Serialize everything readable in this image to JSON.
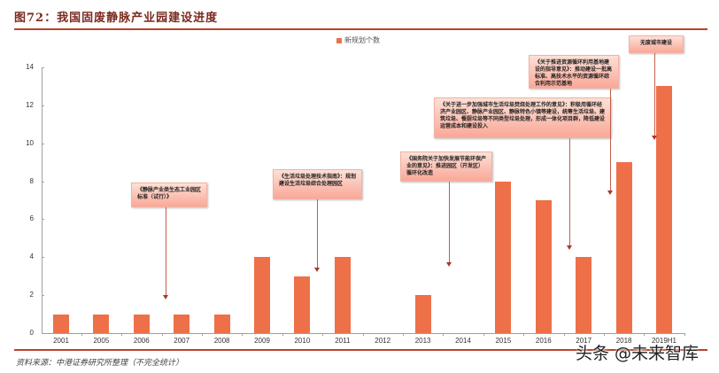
{
  "title": "图72：我国固废静脉产业园建设进度",
  "legend": {
    "label": "新规划个数",
    "color": "#ee7049"
  },
  "source": "资料来源：中港证券研究所整理（不完全统计）",
  "watermark": "头条 @未来智库",
  "y_ticks": [
    "0",
    "2",
    "4",
    "6",
    "8",
    "10",
    "12",
    "14"
  ],
  "callouts": [
    {
      "text": "《静脉产业类生态工业园区标准（试行）》"
    },
    {
      "text": "《生活垃圾处理技术指南》：规划建设生活垃圾综合处理园区"
    },
    {
      "text": "《国务院关于加快发展节能环保产业的意见》：推进园区（开发区）循环化改造"
    },
    {
      "text": "《关于进一步加强城市生活垃圾焚烧处理工作的意见》：积极用循环经济产业园区、静脉产业园区、静脉特色小镇等建设，统筹生活垃圾、建筑垃圾、餐厨垃圾等不同类型垃圾处理，形成一体化项目群，降低建设运营成本和建设投入"
    },
    {
      "text": "《关于推进资源循环利用基地建设的指导意见》：推动建设一批高标准、高技术水平的资源循环综合利用示范基地"
    },
    {
      "text": "无废城市建设"
    }
  ],
  "chart_data": {
    "type": "bar",
    "title": "图72：我国固废静脉产业园建设进度",
    "xlabel": "",
    "ylabel": "",
    "ylim": [
      0,
      14
    ],
    "yticks": [
      0,
      2,
      4,
      6,
      8,
      10,
      12,
      14
    ],
    "grid": false,
    "legend_position": "top",
    "categories": [
      "2001",
      "2005",
      "2006",
      "2007",
      "2008",
      "2009",
      "2010",
      "2011",
      "2012",
      "2013",
      "2014",
      "2015",
      "2016",
      "2017",
      "2018",
      "2019H1"
    ],
    "series": [
      {
        "name": "新规划个数",
        "color": "#ee7049",
        "values": [
          1,
          1,
          1,
          1,
          1,
          4,
          3,
          4,
          0,
          2,
          0,
          8,
          7,
          4,
          9,
          13
        ]
      }
    ],
    "annotations": [
      {
        "category": "2007",
        "text": "《静脉产业类生态工业园区标准（试行）》"
      },
      {
        "category": "2010",
        "text": "《生活垃圾处理技术指南》：规划建设生活垃圾综合处理园区"
      },
      {
        "category": "2014",
        "text": "《国务院关于加快发展节能环保产业的意见》：推进园区（开发区）循环化改造"
      },
      {
        "category": "2017",
        "text": "《关于进一步加强城市生活垃圾焚烧处理工作的意见》：积极用循环经济产业园区、静脉产业园区、静脉特色小镇等建设，统筹生活垃圾、建筑垃圾、餐厨垃圾等不同类型垃圾处理，形成一体化项目群，降低建设运营成本和建设投入"
      },
      {
        "category": "2018",
        "text": "《关于推进资源循环利用基地建设的指导意见》：推动建设一批高标准、高技术水平的资源循环综合利用示范基地"
      },
      {
        "category": "2019H1",
        "text": "无废城市建设"
      }
    ]
  }
}
